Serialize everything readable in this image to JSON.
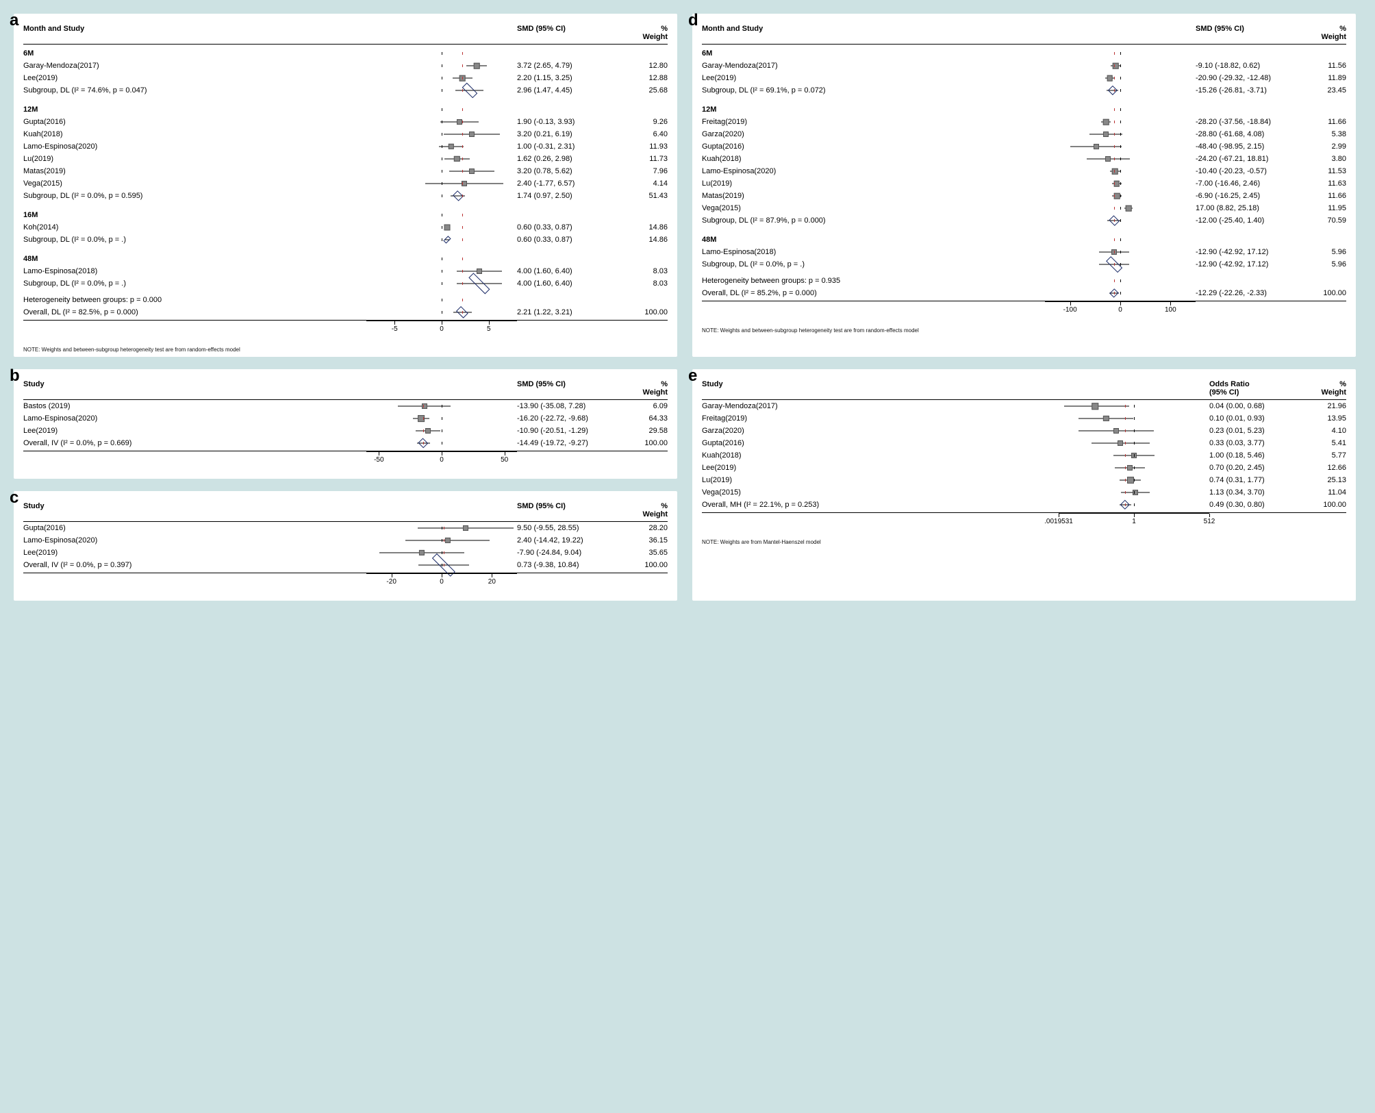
{
  "layout": {
    "bg": "#cde2e3"
  },
  "panels": {
    "a": {
      "label": "a",
      "header": {
        "c1": "Month and Study",
        "c2": "SMD (95% CI)",
        "c3a": "%",
        "c3b": "Weight"
      },
      "axis": {
        "min": -8,
        "max": 8,
        "zero": 0,
        "ref": 2.21,
        "ticks": [
          -5,
          0,
          5
        ]
      },
      "groups": [
        {
          "title": "6M",
          "rows": [
            {
              "study": "Garay-Mendoza(2017)",
              "pt": 3.72,
              "lo": 2.65,
              "hi": 4.79,
              "wt": 12.8,
              "text": "3.72 (2.65, 4.79)"
            },
            {
              "study": "Lee(2019)",
              "pt": 2.2,
              "lo": 1.15,
              "hi": 3.25,
              "wt": 12.88,
              "text": "2.20 (1.15, 3.25)"
            }
          ],
          "subtotal": {
            "label": "Subgroup, DL (I² = 74.6%, p = 0.047)",
            "pt": 2.96,
            "lo": 1.47,
            "hi": 4.45,
            "wt": 25.68,
            "text": "2.96 (1.47, 4.45)"
          }
        },
        {
          "title": "12M",
          "rows": [
            {
              "study": "Gupta(2016)",
              "pt": 1.9,
              "lo": -0.13,
              "hi": 3.93,
              "wt": 9.26,
              "text": "1.90 (-0.13, 3.93)"
            },
            {
              "study": "Kuah(2018)",
              "pt": 3.2,
              "lo": 0.21,
              "hi": 6.19,
              "wt": 6.4,
              "text": "3.20 (0.21, 6.19)"
            },
            {
              "study": "Lamo-Espinosa(2020)",
              "pt": 1.0,
              "lo": -0.31,
              "hi": 2.31,
              "wt": 11.93,
              "text": "1.00 (-0.31, 2.31)"
            },
            {
              "study": "Lu(2019)",
              "pt": 1.62,
              "lo": 0.26,
              "hi": 2.98,
              "wt": 11.73,
              "text": "1.62 (0.26, 2.98)"
            },
            {
              "study": "Matas(2019)",
              "pt": 3.2,
              "lo": 0.78,
              "hi": 5.62,
              "wt": 7.96,
              "text": "3.20 (0.78, 5.62)"
            },
            {
              "study": "Vega(2015)",
              "pt": 2.4,
              "lo": -1.77,
              "hi": 6.57,
              "wt": 4.14,
              "text": "2.40 (-1.77, 6.57)"
            }
          ],
          "subtotal": {
            "label": "Subgroup, DL (I² = 0.0%, p = 0.595)",
            "pt": 1.74,
            "lo": 0.97,
            "hi": 2.5,
            "wt": 51.43,
            "text": "1.74 (0.97, 2.50)"
          }
        },
        {
          "title": "16M",
          "rows": [
            {
              "study": "Koh(2014)",
              "pt": 0.6,
              "lo": 0.33,
              "hi": 0.87,
              "wt": 14.86,
              "text": "0.60 (0.33, 0.87)"
            }
          ],
          "subtotal": {
            "label": "Subgroup, DL (I² = 0.0%, p = .)",
            "pt": 0.6,
            "lo": 0.33,
            "hi": 0.87,
            "wt": 14.86,
            "text": "0.60 (0.33, 0.87)"
          }
        },
        {
          "title": "48M",
          "rows": [
            {
              "study": "Lamo-Espinosa(2018)",
              "pt": 4.0,
              "lo": 1.6,
              "hi": 6.4,
              "wt": 8.03,
              "text": "4.00 (1.60, 6.40)"
            }
          ],
          "subtotal": {
            "label": "Subgroup, DL (I² = 0.0%, p = .)",
            "pt": 4.0,
            "lo": 1.6,
            "hi": 6.4,
            "wt": 8.03,
            "text": "4.00 (1.60, 6.40)"
          }
        }
      ],
      "between": "Heterogeneity between groups: p = 0.000",
      "overall": {
        "label": "Overall, DL (I² = 82.5%, p = 0.000)",
        "pt": 2.21,
        "lo": 1.22,
        "hi": 3.21,
        "wt": 100.0,
        "text": "2.21 (1.22, 3.21)"
      },
      "note": "NOTE: Weights and between-subgroup heterogeneity test are from random-effects model"
    },
    "b": {
      "label": "b",
      "header": {
        "c1": "Study",
        "c2": "SMD (95% CI)",
        "c3a": "%",
        "c3b": "Weight"
      },
      "axis": {
        "min": -60,
        "max": 60,
        "zero": 0,
        "ref": -14.49,
        "ticks": [
          -50,
          0,
          50
        ]
      },
      "rows": [
        {
          "study": "Bastos (2019)",
          "pt": -13.9,
          "lo": -35.08,
          "hi": 7.28,
          "wt": 6.09,
          "text": "-13.90 (-35.08, 7.28)"
        },
        {
          "study": "Lamo-Espinosa(2020)",
          "pt": -16.2,
          "lo": -22.72,
          "hi": -9.68,
          "wt": 64.33,
          "text": "-16.20 (-22.72, -9.68)"
        },
        {
          "study": "Lee(2019)",
          "pt": -10.9,
          "lo": -20.51,
          "hi": -1.29,
          "wt": 29.58,
          "text": "-10.90 (-20.51, -1.29)"
        }
      ],
      "overall": {
        "label": "Overall, IV (I² = 0.0%, p = 0.669)",
        "pt": -14.49,
        "lo": -19.72,
        "hi": -9.27,
        "wt": 100.0,
        "text": "-14.49 (-19.72, -9.27)"
      }
    },
    "c": {
      "label": "c",
      "header": {
        "c1": "Study",
        "c2": "SMD (95% CI)",
        "c3a": "%",
        "c3b": "Weight"
      },
      "axis": {
        "min": -30,
        "max": 30,
        "zero": 0,
        "ref": 0.73,
        "ticks": [
          -20,
          0,
          20
        ]
      },
      "rows": [
        {
          "study": "Gupta(2016)",
          "pt": 9.5,
          "lo": -9.55,
          "hi": 28.55,
          "wt": 28.2,
          "text": "9.50 (-9.55, 28.55)"
        },
        {
          "study": "Lamo-Espinosa(2020)",
          "pt": 2.4,
          "lo": -14.42,
          "hi": 19.22,
          "wt": 36.15,
          "text": "2.40 (-14.42, 19.22)"
        },
        {
          "study": "Lee(2019)",
          "pt": -7.9,
          "lo": -24.84,
          "hi": 9.04,
          "wt": 35.65,
          "text": "-7.90 (-24.84, 9.04)"
        }
      ],
      "overall": {
        "label": "Overall, IV (I² = 0.0%, p = 0.397)",
        "pt": 0.73,
        "lo": -9.38,
        "hi": 10.84,
        "wt": 100.0,
        "text": "0.73 (-9.38, 10.84)"
      }
    },
    "d": {
      "label": "d",
      "header": {
        "c1": "Month and Study",
        "c2": "SMD (95% CI)",
        "c3a": "%",
        "c3b": "Weight"
      },
      "axis": {
        "min": -150,
        "max": 150,
        "zero": 0,
        "ref": -12.29,
        "ticks": [
          -100,
          0,
          100
        ]
      },
      "groups": [
        {
          "title": "6M",
          "rows": [
            {
              "study": "Garay-Mendoza(2017)",
              "pt": -9.1,
              "lo": -18.82,
              "hi": 0.62,
              "wt": 11.56,
              "text": "-9.10 (-18.82, 0.62)"
            },
            {
              "study": "Lee(2019)",
              "pt": -20.9,
              "lo": -29.32,
              "hi": -12.48,
              "wt": 11.89,
              "text": "-20.90 (-29.32, -12.48)"
            }
          ],
          "subtotal": {
            "label": "Subgroup, DL (I² = 69.1%, p = 0.072)",
            "pt": -15.26,
            "lo": -26.81,
            "hi": -3.71,
            "wt": 23.45,
            "text": "-15.26 (-26.81, -3.71)"
          }
        },
        {
          "title": "12M",
          "rows": [
            {
              "study": "Freitag(2019)",
              "pt": -28.2,
              "lo": -37.56,
              "hi": -18.84,
              "wt": 11.66,
              "text": "-28.20 (-37.56, -18.84)"
            },
            {
              "study": "Garza(2020)",
              "pt": -28.8,
              "lo": -61.68,
              "hi": 4.08,
              "wt": 5.38,
              "text": "-28.80 (-61.68, 4.08)"
            },
            {
              "study": "Gupta(2016)",
              "pt": -48.4,
              "lo": -98.95,
              "hi": 2.15,
              "wt": 2.99,
              "text": "-48.40 (-98.95, 2.15)"
            },
            {
              "study": "Kuah(2018)",
              "pt": -24.2,
              "lo": -67.21,
              "hi": 18.81,
              "wt": 3.8,
              "text": "-24.20 (-67.21, 18.81)"
            },
            {
              "study": "Lamo-Espinosa(2020)",
              "pt": -10.4,
              "lo": -20.23,
              "hi": -0.57,
              "wt": 11.53,
              "text": "-10.40 (-20.23, -0.57)"
            },
            {
              "study": "Lu(2019)",
              "pt": -7.0,
              "lo": -16.46,
              "hi": 2.46,
              "wt": 11.63,
              "text": "-7.00 (-16.46, 2.46)"
            },
            {
              "study": "Matas(2019)",
              "pt": -6.9,
              "lo": -16.25,
              "hi": 2.45,
              "wt": 11.66,
              "text": "-6.90 (-16.25, 2.45)"
            },
            {
              "study": "Vega(2015)",
              "pt": 17.0,
              "lo": 8.82,
              "hi": 25.18,
              "wt": 11.95,
              "text": "17.00 (8.82, 25.18)"
            }
          ],
          "subtotal": {
            "label": "Subgroup, DL (I² = 87.9%, p = 0.000)",
            "pt": -12.0,
            "lo": -25.4,
            "hi": 1.4,
            "wt": 70.59,
            "text": "-12.00 (-25.40, 1.40)"
          }
        },
        {
          "title": "48M",
          "rows": [
            {
              "study": "Lamo-Espinosa(2018)",
              "pt": -12.9,
              "lo": -42.92,
              "hi": 17.12,
              "wt": 5.96,
              "text": "-12.90 (-42.92, 17.12)"
            }
          ],
          "subtotal": {
            "label": "Subgroup, DL (I² = 0.0%, p = .)",
            "pt": -12.9,
            "lo": -42.92,
            "hi": 17.12,
            "wt": 5.96,
            "text": "-12.90 (-42.92, 17.12)"
          }
        }
      ],
      "between": "Heterogeneity between groups: p = 0.935",
      "overall": {
        "label": "Overall, DL (I² = 85.2%, p = 0.000)",
        "pt": -12.29,
        "lo": -22.26,
        "hi": -2.33,
        "wt": 100.0,
        "text": "-12.29 (-22.26, -2.33)"
      },
      "note": "NOTE: Weights and between-subgroup heterogeneity test are from random-effects model"
    },
    "e": {
      "label": "e",
      "header": {
        "c1": "Study",
        "c2a": "Odds Ratio",
        "c2b": "(95% CI)",
        "c3a": "%",
        "c3b": "Weight"
      },
      "axis": {
        "log": true,
        "min": 0.0019531,
        "max": 512,
        "zero": 1,
        "ref": 0.49,
        "ticks": [
          0.0019531,
          1,
          512
        ],
        "tickLabels": [
          ".0019531",
          "1",
          "512"
        ]
      },
      "rows": [
        {
          "study": "Garay-Mendoza(2017)",
          "pt": 0.04,
          "lo": 0.003,
          "hi": 0.68,
          "wt": 21.96,
          "text": "0.04 (0.00, 0.68)"
        },
        {
          "study": "Freitag(2019)",
          "pt": 0.1,
          "lo": 0.01,
          "hi": 0.93,
          "wt": 13.95,
          "text": "0.10 (0.01, 0.93)"
        },
        {
          "study": "Garza(2020)",
          "pt": 0.23,
          "lo": 0.01,
          "hi": 5.23,
          "wt": 4.1,
          "text": "0.23 (0.01, 5.23)"
        },
        {
          "study": "Gupta(2016)",
          "pt": 0.33,
          "lo": 0.03,
          "hi": 3.77,
          "wt": 5.41,
          "text": "0.33 (0.03, 3.77)"
        },
        {
          "study": "Kuah(2018)",
          "pt": 1.0,
          "lo": 0.18,
          "hi": 5.46,
          "wt": 5.77,
          "text": "1.00 (0.18, 5.46)"
        },
        {
          "study": "Lee(2019)",
          "pt": 0.7,
          "lo": 0.2,
          "hi": 2.45,
          "wt": 12.66,
          "text": "0.70 (0.20, 2.45)"
        },
        {
          "study": "Lu(2019)",
          "pt": 0.74,
          "lo": 0.31,
          "hi": 1.77,
          "wt": 25.13,
          "text": "0.74 (0.31, 1.77)"
        },
        {
          "study": "Vega(2015)",
          "pt": 1.13,
          "lo": 0.34,
          "hi": 3.7,
          "wt": 11.04,
          "text": "1.13 (0.34, 3.70)"
        }
      ],
      "overall": {
        "label": "Overall, MH (I² = 22.1%, p = 0.253)",
        "pt": 0.49,
        "lo": 0.3,
        "hi": 0.8,
        "wt": 100.0,
        "text": "0.49 (0.30, 0.80)"
      },
      "note": "NOTE: Weights are from Mantel-Haenszel model"
    }
  }
}
